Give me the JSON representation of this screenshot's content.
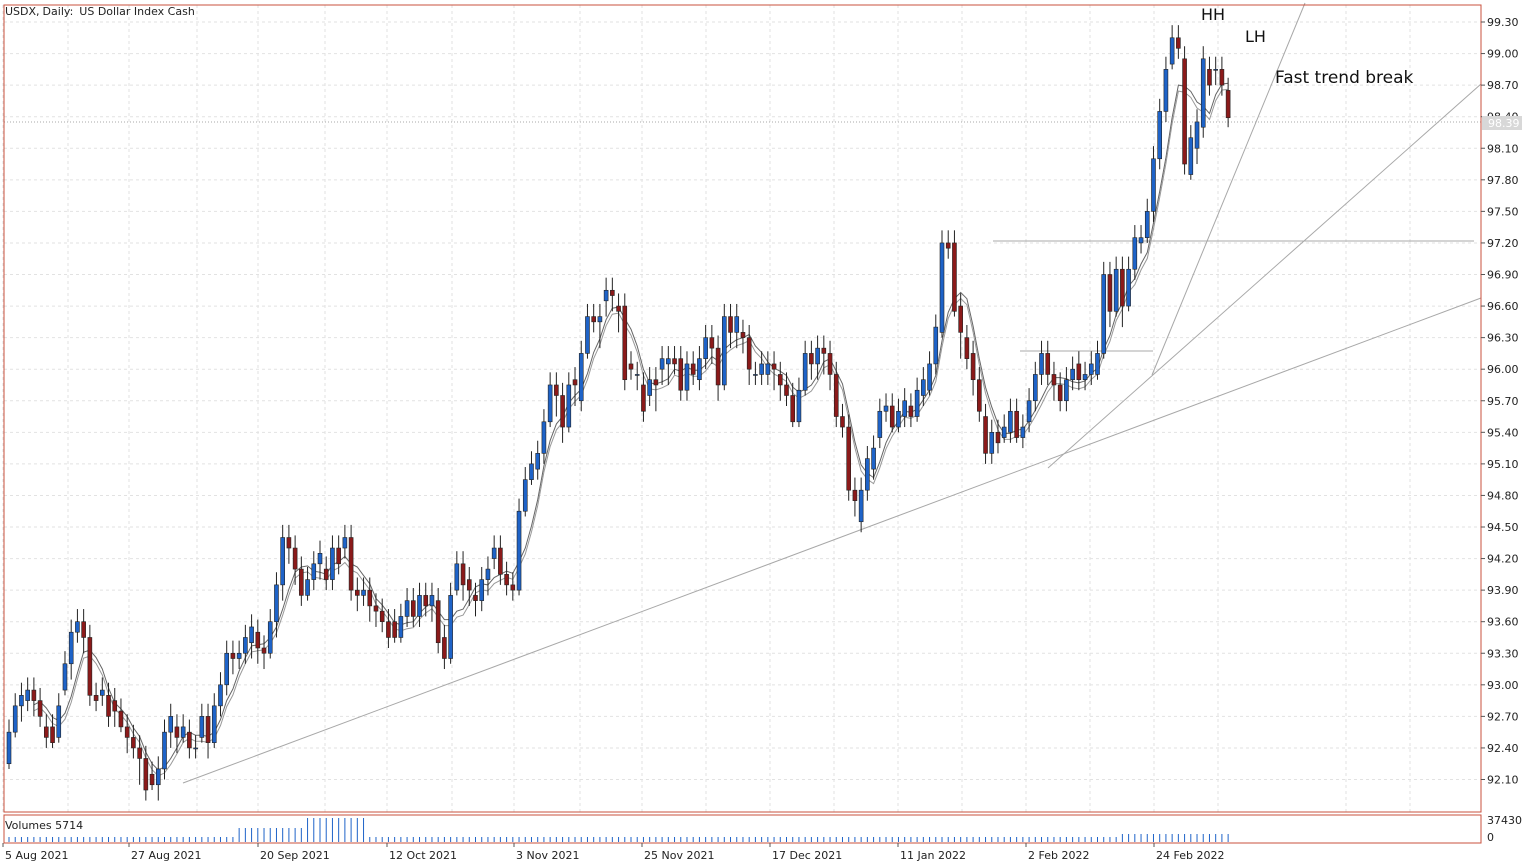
{
  "header": {
    "symbol": "USDX,",
    "period": "Daily:",
    "description": "US Dollar Index Cash"
  },
  "volume_panel": {
    "label": "Volumes 5714",
    "scale_max": "37430",
    "scale_min": "0"
  },
  "current_price_tag": "98.39",
  "annotations": {
    "hh": "HH",
    "lh": "LH",
    "trend_break": "Fast trend break"
  },
  "colors": {
    "bull": "#1e63c8",
    "bear": "#8b1a1a",
    "frame": "#c8503c",
    "grid": "#e2e2e2",
    "ma": "#888888",
    "trendline": "#a8a8a8",
    "volume": "#1e63c8"
  },
  "chart_data": {
    "type": "candlestick",
    "title": "USDX, Daily: US Dollar Index Cash",
    "ylim": [
      91.8,
      99.6
    ],
    "y_ticks": [
      "99.30",
      "99.00",
      "98.70",
      "98.40",
      "98.10",
      "97.80",
      "97.50",
      "97.20",
      "96.90",
      "96.60",
      "96.30",
      "96.00",
      "95.70",
      "95.40",
      "95.10",
      "94.80",
      "94.50",
      "94.20",
      "93.90",
      "93.60",
      "93.30",
      "93.00",
      "92.70",
      "92.40",
      "92.10"
    ],
    "x_labels": [
      "5 Aug 2021",
      "27 Aug 2021",
      "20 Sep 2021",
      "12 Oct 2021",
      "3 Nov 2021",
      "25 Nov 2021",
      "17 Dec 2021",
      "11 Jan 2022",
      "2 Feb 2022",
      "24 Feb 2022"
    ],
    "candles_ocl": [
      [
        92.25,
        92.55,
        92.2
      ],
      [
        92.55,
        92.8,
        92.5
      ],
      [
        92.8,
        92.9,
        92.65
      ],
      [
        92.85,
        92.95,
        92.75
      ],
      [
        92.95,
        92.85,
        92.7
      ],
      [
        92.85,
        92.7,
        92.6
      ],
      [
        92.6,
        92.5,
        92.4
      ],
      [
        92.6,
        92.45,
        92.4
      ],
      [
        92.5,
        92.8,
        92.45
      ],
      [
        92.95,
        93.2,
        92.9
      ],
      [
        93.2,
        93.5,
        93.05
      ],
      [
        93.5,
        93.6,
        93.4
      ],
      [
        93.6,
        93.45,
        93.3
      ],
      [
        93.45,
        92.9,
        92.8
      ],
      [
        92.9,
        92.85,
        92.75
      ],
      [
        92.9,
        92.95,
        92.8
      ],
      [
        92.9,
        92.7,
        92.6
      ],
      [
        92.85,
        92.75,
        92.6
      ],
      [
        92.75,
        92.6,
        92.55
      ],
      [
        92.6,
        92.5,
        92.35
      ],
      [
        92.5,
        92.4,
        92.3
      ],
      [
        92.4,
        92.3,
        92.05
      ],
      [
        92.3,
        92.0,
        91.9
      ],
      [
        92.15,
        92.05,
        92.0
      ],
      [
        92.05,
        92.2,
        91.9
      ],
      [
        92.2,
        92.55,
        92.1
      ],
      [
        92.55,
        92.7,
        92.4
      ],
      [
        92.6,
        92.5,
        92.35
      ],
      [
        92.5,
        92.6,
        92.45
      ],
      [
        92.55,
        92.4,
        92.3
      ],
      [
        92.4,
        92.4,
        92.3
      ],
      [
        92.5,
        92.7,
        92.45
      ],
      [
        92.7,
        92.45,
        92.3
      ],
      [
        92.45,
        92.8,
        92.4
      ],
      [
        92.8,
        93.0,
        92.7
      ],
      [
        93.0,
        93.3,
        92.9
      ],
      [
        93.3,
        93.25,
        93.1
      ],
      [
        93.25,
        93.3,
        93.15
      ],
      [
        93.3,
        93.45,
        93.2
      ],
      [
        93.4,
        93.55,
        93.25
      ],
      [
        93.5,
        93.35,
        93.2
      ],
      [
        93.35,
        93.3,
        93.15
      ],
      [
        93.3,
        93.6,
        93.25
      ],
      [
        93.6,
        93.95,
        93.45
      ],
      [
        93.95,
        94.4,
        93.8
      ],
      [
        94.4,
        94.3,
        94.15
      ],
      [
        94.3,
        94.1,
        93.95
      ],
      [
        94.1,
        93.85,
        93.75
      ],
      [
        93.85,
        94.0,
        93.8
      ],
      [
        94.0,
        94.15,
        93.9
      ],
      [
        94.15,
        94.25,
        94.0
      ],
      [
        94.1,
        94.0,
        93.9
      ],
      [
        94.0,
        94.3,
        93.9
      ],
      [
        94.3,
        94.15,
        94.05
      ],
      [
        94.3,
        94.4,
        94.2
      ],
      [
        94.4,
        93.9,
        93.8
      ],
      [
        93.9,
        93.85,
        93.7
      ],
      [
        93.85,
        93.9,
        93.75
      ],
      [
        93.9,
        93.75,
        93.6
      ],
      [
        93.75,
        93.7,
        93.55
      ],
      [
        93.7,
        93.6,
        93.5
      ],
      [
        93.6,
        93.45,
        93.35
      ],
      [
        93.6,
        93.45,
        93.4
      ],
      [
        93.45,
        93.65,
        93.4
      ],
      [
        93.65,
        93.8,
        93.55
      ],
      [
        93.8,
        93.65,
        93.55
      ],
      [
        93.65,
        93.85,
        93.55
      ],
      [
        93.85,
        93.75,
        93.65
      ],
      [
        93.75,
        93.85,
        93.6
      ],
      [
        93.8,
        93.4,
        93.3
      ],
      [
        93.45,
        93.25,
        93.15
      ],
      [
        93.25,
        93.85,
        93.2
      ],
      [
        93.9,
        94.15,
        93.85
      ],
      [
        94.15,
        93.95,
        93.8
      ],
      [
        94.0,
        93.9,
        93.75
      ],
      [
        93.85,
        93.8,
        93.65
      ],
      [
        93.8,
        94.0,
        93.7
      ],
      [
        94.0,
        94.1,
        93.85
      ],
      [
        94.2,
        94.3,
        94.1
      ],
      [
        94.3,
        94.05,
        93.95
      ],
      [
        94.05,
        93.95,
        93.85
      ],
      [
        93.95,
        93.9,
        93.8
      ],
      [
        93.9,
        94.65,
        93.85
      ],
      [
        94.65,
        94.95,
        94.6
      ],
      [
        94.95,
        95.1,
        94.9
      ],
      [
        95.05,
        95.2,
        94.95
      ],
      [
        95.2,
        95.5,
        95.1
      ],
      [
        95.5,
        95.85,
        95.45
      ],
      [
        95.85,
        95.75,
        95.55
      ],
      [
        95.75,
        95.45,
        95.3
      ],
      [
        95.45,
        95.85,
        95.4
      ],
      [
        95.9,
        95.85,
        95.65
      ],
      [
        95.7,
        96.15,
        95.6
      ],
      [
        96.15,
        96.5,
        96.1
      ],
      [
        96.5,
        96.45,
        96.35
      ],
      [
        96.45,
        96.5,
        96.2
      ],
      [
        96.65,
        96.75,
        96.5
      ],
      [
        96.75,
        96.7,
        96.55
      ],
      [
        96.6,
        96.55,
        96.35
      ],
      [
        96.6,
        95.9,
        95.8
      ],
      [
        96.05,
        96.0,
        95.9
      ],
      [
        95.95,
        95.95,
        95.8
      ],
      [
        95.85,
        95.6,
        95.5
      ],
      [
        95.75,
        95.9,
        95.65
      ],
      [
        95.9,
        95.85,
        95.6
      ],
      [
        96.0,
        96.1,
        95.85
      ],
      [
        96.05,
        96.1,
        95.85
      ],
      [
        96.1,
        96.05,
        95.95
      ],
      [
        96.1,
        95.8,
        95.7
      ],
      [
        95.8,
        96.05,
        95.7
      ],
      [
        96.05,
        95.95,
        95.85
      ],
      [
        95.9,
        96.1,
        95.8
      ],
      [
        96.1,
        96.3,
        96.0
      ],
      [
        96.3,
        96.2,
        96.05
      ],
      [
        96.2,
        95.85,
        95.7
      ],
      [
        95.85,
        96.5,
        95.8
      ],
      [
        96.5,
        96.35,
        96.2
      ],
      [
        96.35,
        96.5,
        96.2
      ],
      [
        96.35,
        96.3,
        96.15
      ],
      [
        96.3,
        96.0,
        95.85
      ],
      [
        95.95,
        95.95,
        95.85
      ],
      [
        95.95,
        96.05,
        95.85
      ],
      [
        95.95,
        96.05,
        95.85
      ],
      [
        96.05,
        96.0,
        95.8
      ],
      [
        95.95,
        95.85,
        95.7
      ],
      [
        95.85,
        95.75,
        95.65
      ],
      [
        95.75,
        95.5,
        95.45
      ],
      [
        95.5,
        95.8,
        95.45
      ],
      [
        95.8,
        96.15,
        95.75
      ],
      [
        96.15,
        96.05,
        95.9
      ],
      [
        96.05,
        96.2,
        95.9
      ],
      [
        96.2,
        96.15,
        95.95
      ],
      [
        96.15,
        95.95,
        95.8
      ],
      [
        95.95,
        95.55,
        95.45
      ],
      [
        95.55,
        95.45,
        95.35
      ],
      [
        95.45,
        94.85,
        94.75
      ],
      [
        94.85,
        94.75,
        94.6
      ],
      [
        94.55,
        94.85,
        94.45
      ],
      [
        94.85,
        95.15,
        94.75
      ],
      [
        95.05,
        95.25,
        94.95
      ],
      [
        95.35,
        95.6,
        95.25
      ],
      [
        95.6,
        95.65,
        95.5
      ],
      [
        95.65,
        95.45,
        95.4
      ],
      [
        95.45,
        95.6,
        95.4
      ],
      [
        95.55,
        95.7,
        95.45
      ],
      [
        95.65,
        95.55,
        95.45
      ],
      [
        95.55,
        95.8,
        95.5
      ],
      [
        95.75,
        95.9,
        95.65
      ],
      [
        95.8,
        96.05,
        95.75
      ],
      [
        96.05,
        96.4,
        95.95
      ],
      [
        96.35,
        97.2,
        96.3
      ],
      [
        97.2,
        97.15,
        97.05
      ],
      [
        97.2,
        96.55,
        96.5
      ],
      [
        96.6,
        96.35,
        96.1
      ],
      [
        96.3,
        96.1,
        96.0
      ],
      [
        96.15,
        95.9,
        95.75
      ],
      [
        95.9,
        95.6,
        95.5
      ],
      [
        95.55,
        95.2,
        95.1
      ],
      [
        95.2,
        95.4,
        95.1
      ],
      [
        95.4,
        95.3,
        95.2
      ],
      [
        95.35,
        95.45,
        95.3
      ],
      [
        95.4,
        95.6,
        95.3
      ],
      [
        95.6,
        95.35,
        95.3
      ],
      [
        95.35,
        95.45,
        95.25
      ],
      [
        95.5,
        95.7,
        95.4
      ],
      [
        95.7,
        95.95,
        95.6
      ],
      [
        95.95,
        96.15,
        95.85
      ],
      [
        96.15,
        95.95,
        95.85
      ],
      [
        95.95,
        95.85,
        95.7
      ],
      [
        95.85,
        95.7,
        95.6
      ],
      [
        95.7,
        95.9,
        95.6
      ],
      [
        95.9,
        96.0,
        95.8
      ],
      [
        96.05,
        95.9,
        95.8
      ],
      [
        95.9,
        95.95,
        95.8
      ],
      [
        95.95,
        96.05,
        95.85
      ],
      [
        95.95,
        96.15,
        95.9
      ],
      [
        96.15,
        96.9,
        96.1
      ],
      [
        96.9,
        96.55,
        96.4
      ],
      [
        96.55,
        96.95,
        96.5
      ],
      [
        96.95,
        96.6,
        96.4
      ],
      [
        96.6,
        96.95,
        96.55
      ],
      [
        96.95,
        97.25,
        96.85
      ],
      [
        97.2,
        97.25,
        97.1
      ],
      [
        97.25,
        97.5,
        97.2
      ],
      [
        97.5,
        98.0,
        97.4
      ],
      [
        98.0,
        98.45,
        97.9
      ],
      [
        98.45,
        98.85,
        98.35
      ],
      [
        98.9,
        99.15,
        98.85
      ],
      [
        99.15,
        99.05,
        98.95
      ],
      [
        98.95,
        97.95,
        97.85
      ],
      [
        97.85,
        98.2,
        97.8
      ],
      [
        98.1,
        98.35,
        97.95
      ],
      [
        98.3,
        98.95,
        98.2
      ],
      [
        98.85,
        98.7,
        98.6
      ],
      [
        98.85,
        98.85,
        98.7
      ],
      [
        98.85,
        98.7,
        98.6
      ],
      [
        98.65,
        98.39,
        98.3
      ]
    ]
  }
}
